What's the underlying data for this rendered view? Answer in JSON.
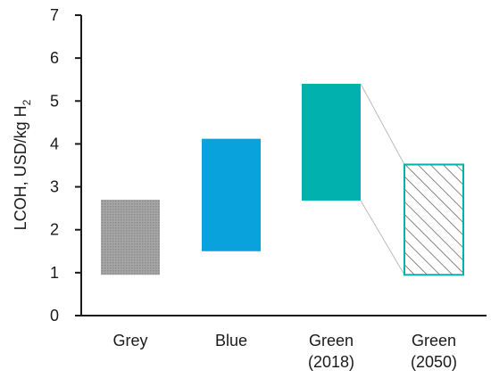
{
  "chart_data": {
    "type": "bar",
    "subtype": "floating-range",
    "title": "",
    "xlabel": "",
    "ylabel": "LCOH, USD/kg H",
    "ylabel_subscript": "2",
    "ylim": [
      0,
      7
    ],
    "yticks": [
      "0",
      "1",
      "2",
      "3",
      "4",
      "5",
      "6",
      "7"
    ],
    "grid": false,
    "categories": [
      {
        "label_lines": [
          "Grey"
        ],
        "low": 0.95,
        "high": 2.7,
        "color": "#9a9a9a",
        "style": "stippled"
      },
      {
        "label_lines": [
          "Blue"
        ],
        "low": 1.5,
        "high": 4.12,
        "color": "#0aa2dc",
        "style": "solid"
      },
      {
        "label_lines": [
          "Green",
          "(2018)"
        ],
        "low": 2.68,
        "high": 5.4,
        "color": "#00b1ad",
        "style": "solid"
      },
      {
        "label_lines": [
          "Green",
          "(2050)"
        ],
        "low": 0.95,
        "high": 3.52,
        "color": "#00b1ad",
        "style": "hatched"
      }
    ],
    "connector": {
      "from": 2,
      "to": 3,
      "color": "#bbbbbb"
    }
  }
}
